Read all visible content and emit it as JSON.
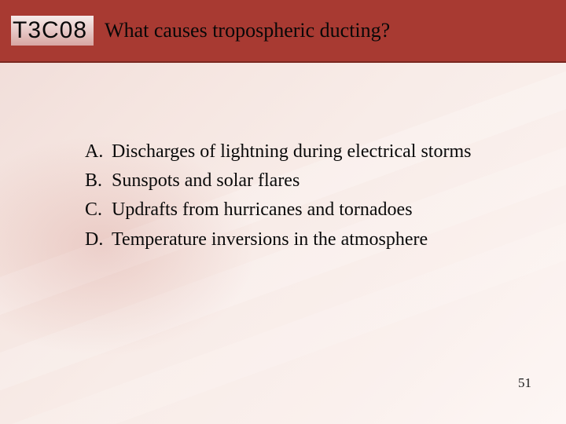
{
  "header": {
    "code": "T3C08",
    "question": "What causes tropospheric ducting?",
    "bar_color": "#a83a32",
    "bar_border": "#7a2820"
  },
  "options": [
    {
      "letter": "A.",
      "text": "Discharges of lightning during electrical storms"
    },
    {
      "letter": "B.",
      "text": "Sunspots and solar flares"
    },
    {
      "letter": "C.",
      "text": "Updrafts from hurricanes and tornadoes"
    },
    {
      "letter": "D.",
      "text": "Temperature inversions in the atmosphere"
    }
  ],
  "page_number": "51",
  "style": {
    "code_font": "Arial",
    "code_fontsize": 30,
    "question_font": "Georgia",
    "question_fontsize": 26,
    "option_font": "Georgia",
    "option_fontsize": 24,
    "text_color": "#0a0a0a",
    "background_gradient": [
      "#f0dcd8",
      "#fdf6f4"
    ]
  }
}
